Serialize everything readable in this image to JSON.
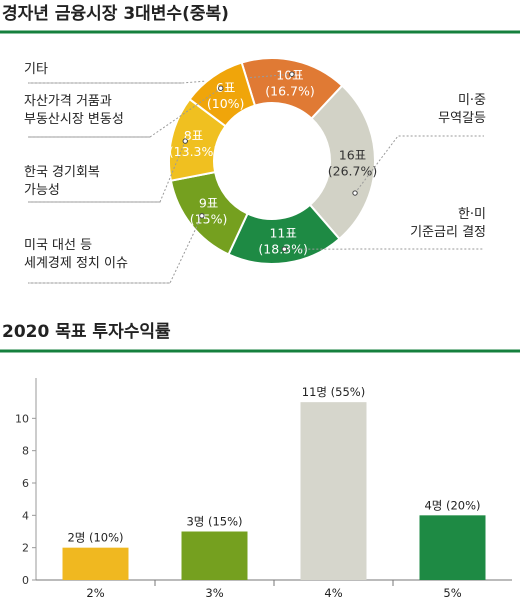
{
  "chart_data": [
    {
      "type": "pie",
      "title": "경자년 금융시장 3대변수(중복)",
      "colors": {
        "accent_rule": "#15803d",
        "slices": [
          "#e07a34",
          "#d2d2c6",
          "#1e8a44",
          "#75a01f",
          "#f0c020",
          "#f0a50a"
        ]
      },
      "slices": [
        {
          "value_label": "10표",
          "pct_label": "(16.7%)",
          "votes": 10,
          "percent": 16.7,
          "category": "기타",
          "side": "left"
        },
        {
          "value_label": "16표",
          "pct_label": "(26.7%)",
          "votes": 16,
          "percent": 26.7,
          "category": "미·중\n무역갈등",
          "side": "right"
        },
        {
          "value_label": "11표",
          "pct_label": "(18.3%)",
          "votes": 11,
          "percent": 18.3,
          "category": "한·미\n기준금리 결정",
          "side": "right"
        },
        {
          "value_label": "9표",
          "pct_label": "(15%)",
          "votes": 9,
          "percent": 15,
          "category": "미국 대선 등\n세계경제 정치 이슈",
          "side": "left"
        },
        {
          "value_label": "8표",
          "pct_label": "(13.3%)",
          "votes": 8,
          "percent": 13.3,
          "category": "한국 경기회복\n가능성",
          "side": "left"
        },
        {
          "value_label": "6표",
          "pct_label": "(10%)",
          "votes": 6,
          "percent": 10,
          "category": "자산가격 거품과\n부동산시장 변동성",
          "side": "left"
        }
      ]
    },
    {
      "type": "bar",
      "title": "2020 목표 투자수익률",
      "categories": [
        "2%",
        "3%",
        "4%",
        "5%"
      ],
      "values": [
        2,
        3,
        11,
        4
      ],
      "bar_labels": [
        "2명 (10%)",
        "3명 (15%)",
        "11명 (55%)",
        "4명 (20%)"
      ],
      "bar_colors": [
        "#f0b820",
        "#75a01f",
        "#d6d6cc",
        "#1e8a44"
      ],
      "ylim": [
        0,
        12
      ],
      "yticks": [
        0,
        2,
        4,
        6,
        8,
        10
      ],
      "xlabel": "",
      "ylabel": "",
      "grid": false
    }
  ]
}
